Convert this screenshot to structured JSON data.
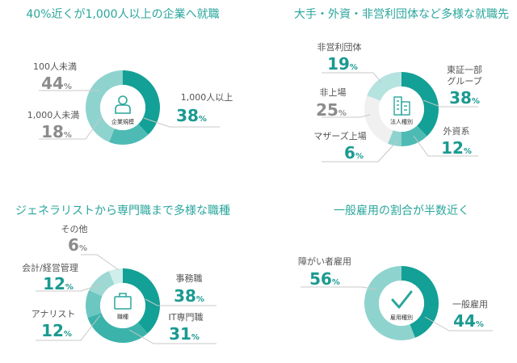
{
  "colors": {
    "title": "#2aa69c",
    "highlight": "#1a9a91",
    "muted": "#8c8c8c",
    "leader": "#c8c8c8",
    "icon": "#2aa69c"
  },
  "chart_data": [
    {
      "type": "pie",
      "title": "40%近くが1,000人以上の企業へ就職",
      "center_label": "企業規模",
      "center_icon": "person-icon",
      "unit": "%",
      "slices": [
        {
          "label": "1,000人以上",
          "value": 38,
          "color": "#13a096",
          "highlight": true
        },
        {
          "label": "1,000人未満",
          "value": 18,
          "color": "#4dbbb4",
          "highlight": false
        },
        {
          "label": "100人未満",
          "value": 44,
          "color": "#8fd3ce",
          "highlight": false
        }
      ]
    },
    {
      "type": "pie",
      "title": "大手・外資・非営利団体など多様な就職先",
      "center_label": "法人種別",
      "center_icon": "building-icon",
      "unit": "%",
      "slices": [
        {
          "label": "東証一部\nグループ",
          "value": 38,
          "color": "#13a096",
          "highlight": true
        },
        {
          "label": "外資系",
          "value": 12,
          "color": "#4dbbb4",
          "highlight": true
        },
        {
          "label": "マザーズ上場",
          "value": 6,
          "color": "#8fd3ce",
          "highlight": true
        },
        {
          "label": "非上場",
          "value": 25,
          "color": "#f0f0f0",
          "highlight": false
        },
        {
          "label": "非営利団体",
          "value": 19,
          "color": "#b5e3df",
          "highlight": true
        }
      ]
    },
    {
      "type": "pie",
      "title": "ジェネラリストから専門職まで多様な職種",
      "center_label": "職種",
      "center_icon": "briefcase-icon",
      "unit": "%",
      "slices": [
        {
          "label": "事務職",
          "value": 38,
          "color": "#13a096",
          "highlight": true
        },
        {
          "label": "IT専門職",
          "value": 31,
          "color": "#3bb3ab",
          "highlight": true
        },
        {
          "label": "アナリスト",
          "value": 12,
          "color": "#6cc7c0",
          "highlight": true
        },
        {
          "label": "会計/経営管理",
          "value": 12,
          "color": "#9dd8d3",
          "highlight": true
        },
        {
          "label": "その他",
          "value": 6,
          "color": "#d0eeeb",
          "highlight": false
        }
      ]
    },
    {
      "type": "pie",
      "title": "一般雇用の割合が半数近く",
      "center_label": "雇用種別",
      "center_icon": "check-icon",
      "unit": "%",
      "slices": [
        {
          "label": "一般雇用",
          "value": 44,
          "color": "#13a096",
          "highlight": true
        },
        {
          "label": "障がい者雇用",
          "value": 56,
          "color": "#8fd3ce",
          "highlight": true
        }
      ]
    }
  ]
}
